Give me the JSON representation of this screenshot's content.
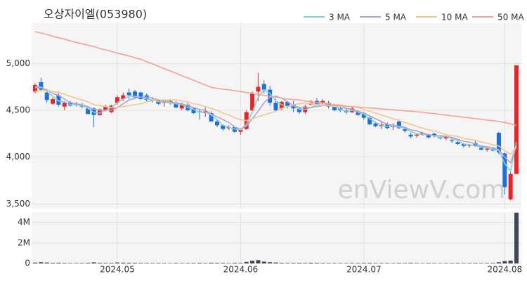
{
  "chart_data": {
    "type": "candlestick",
    "title": "오상자이엘(053980)",
    "watermark": "enViewV.com",
    "legend": "top-right",
    "grid": true,
    "up_color": "#e8262a",
    "down_color": "#1b6fde",
    "categories": [
      null,
      null,
      null,
      null,
      null,
      null,
      null,
      null,
      null,
      null,
      null,
      null,
      null,
      null,
      "2024.05",
      null,
      null,
      null,
      null,
      null,
      null,
      null,
      null,
      null,
      null,
      null,
      null,
      null,
      null,
      null,
      null,
      null,
      null,
      null,
      null,
      "2024.06",
      null,
      null,
      null,
      null,
      null,
      null,
      null,
      null,
      null,
      null,
      null,
      null,
      null,
      null,
      null,
      null,
      null,
      null,
      null,
      null,
      "2024.07",
      null,
      null,
      null,
      null,
      null,
      null,
      null,
      null,
      null,
      null,
      null,
      null,
      null,
      null,
      null,
      null,
      null,
      null,
      null,
      null,
      null,
      null,
      null,
      "2024.08",
      null,
      null
    ],
    "open": [
      4700,
      4800,
      4690,
      4570,
      4660,
      4540,
      4580,
      4570,
      4560,
      4520,
      4520,
      4450,
      4500,
      4480,
      4580,
      4620,
      4690,
      4700,
      4690,
      4660,
      4610,
      4610,
      4580,
      4600,
      4580,
      4520,
      4560,
      4520,
      4490,
      4470,
      4470,
      4380,
      4340,
      4310,
      4320,
      4270,
      4300,
      4500,
      4700,
      4780,
      4720,
      4580,
      4520,
      4590,
      4560,
      4520,
      4480,
      4560,
      4600,
      4580,
      4580,
      4540,
      4520,
      4500,
      4480,
      4480,
      4470,
      4420,
      4360,
      4330,
      4350,
      4320,
      4380,
      4300,
      4240,
      4230,
      4250,
      4240,
      4250,
      4210,
      4200,
      4180,
      4160,
      4140,
      4120,
      4150,
      4100,
      4080,
      4090,
      4260,
      4040,
      3550,
      3820
    ],
    "high": [
      4790,
      4850,
      4720,
      4640,
      4700,
      4600,
      4600,
      4590,
      4580,
      4540,
      4530,
      4520,
      4560,
      4560,
      4660,
      4690,
      4730,
      4720,
      4700,
      4680,
      4640,
      4620,
      4610,
      4620,
      4600,
      4580,
      4580,
      4530,
      4510,
      4530,
      4490,
      4410,
      4350,
      4340,
      4330,
      4300,
      4500,
      4700,
      4900,
      4820,
      4760,
      4620,
      4600,
      4600,
      4600,
      4540,
      4560,
      4610,
      4630,
      4620,
      4600,
      4560,
      4540,
      4520,
      4540,
      4500,
      4480,
      4440,
      4380,
      4380,
      4370,
      4360,
      4400,
      4320,
      4260,
      4250,
      4270,
      4250,
      4260,
      4220,
      4230,
      4200,
      4170,
      4150,
      4140,
      4180,
      4110,
      4100,
      4100,
      4270,
      4050,
      3840,
      4980
    ],
    "low": [
      4680,
      4700,
      4580,
      4560,
      4540,
      4500,
      4540,
      4540,
      4520,
      4460,
      4320,
      4440,
      4490,
      4470,
      4560,
      4600,
      4620,
      4620,
      4610,
      4590,
      4580,
      4560,
      4540,
      4560,
      4520,
      4500,
      4490,
      4460,
      4400,
      4430,
      4380,
      4320,
      4280,
      4290,
      4260,
      4240,
      4290,
      4480,
      4600,
      4680,
      4550,
      4480,
      4500,
      4520,
      4480,
      4460,
      4460,
      4550,
      4560,
      4560,
      4520,
      4490,
      4480,
      4460,
      4470,
      4440,
      4400,
      4340,
      4320,
      4300,
      4300,
      4290,
      4300,
      4260,
      4200,
      4210,
      4230,
      4200,
      4210,
      4190,
      4180,
      4150,
      4130,
      4100,
      4100,
      4110,
      4070,
      4060,
      4060,
      4030,
      3600,
      3540,
      3820
    ],
    "close": [
      4770,
      4720,
      4610,
      4620,
      4560,
      4580,
      4550,
      4560,
      4540,
      4460,
      4450,
      4510,
      4540,
      4550,
      4640,
      4660,
      4660,
      4640,
      4620,
      4610,
      4600,
      4570,
      4600,
      4580,
      4530,
      4560,
      4500,
      4470,
      4480,
      4490,
      4380,
      4340,
      4300,
      4320,
      4270,
      4290,
      4480,
      4680,
      4750,
      4720,
      4580,
      4500,
      4590,
      4540,
      4520,
      4480,
      4540,
      4580,
      4570,
      4600,
      4540,
      4500,
      4500,
      4480,
      4520,
      4450,
      4420,
      4350,
      4330,
      4350,
      4310,
      4340,
      4310,
      4280,
      4220,
      4240,
      4260,
      4210,
      4230,
      4200,
      4220,
      4170,
      4140,
      4120,
      4130,
      4120,
      4080,
      4090,
      4070,
      4050,
      3680,
      3820,
      4980
    ],
    "ylim": [
      3450,
      5430
    ],
    "yticks": [
      {
        "value": 3500,
        "label": "3,500"
      },
      {
        "value": 4000,
        "label": "4,000"
      },
      {
        "value": 4500,
        "label": "4,500"
      },
      {
        "value": 5000,
        "label": "5,000"
      }
    ],
    "moving_averages": [
      {
        "name": "3 MA",
        "color": "#7dd3d6",
        "values": [
          4750,
          4750,
          4700,
          4650,
          4600,
          4590,
          4560,
          4560,
          4550,
          4520,
          4480,
          4470,
          4500,
          4530,
          4580,
          4620,
          4650,
          4650,
          4640,
          4620,
          4610,
          4590,
          4590,
          4580,
          4570,
          4560,
          4530,
          4510,
          4480,
          4480,
          4450,
          4400,
          4340,
          4320,
          4300,
          4290,
          4350,
          4480,
          4640,
          4720,
          4680,
          4600,
          4560,
          4540,
          4550,
          4510,
          4510,
          4530,
          4560,
          4580,
          4570,
          4550,
          4510,
          4490,
          4500,
          4480,
          4460,
          4410,
          4370,
          4340,
          4330,
          4330,
          4320,
          4310,
          4270,
          4250,
          4240,
          4240,
          4230,
          4210,
          4220,
          4200,
          4180,
          4140,
          4130,
          4120,
          4110,
          4100,
          4080,
          4070,
          3930,
          3850,
          4160
        ]
      },
      {
        "name": "5 MA",
        "color": "#b89fcc",
        "values": [
          4740,
          4740,
          4720,
          4680,
          4660,
          4620,
          4580,
          4570,
          4560,
          4540,
          4510,
          4500,
          4500,
          4500,
          4530,
          4570,
          4610,
          4630,
          4640,
          4640,
          4630,
          4610,
          4600,
          4590,
          4580,
          4570,
          4550,
          4530,
          4510,
          4500,
          4460,
          4430,
          4400,
          4370,
          4320,
          4300,
          4330,
          4410,
          4490,
          4580,
          4640,
          4650,
          4630,
          4590,
          4550,
          4530,
          4530,
          4530,
          4540,
          4550,
          4570,
          4560,
          4540,
          4520,
          4510,
          4490,
          4470,
          4440,
          4410,
          4380,
          4350,
          4340,
          4330,
          4320,
          4290,
          4280,
          4260,
          4240,
          4230,
          4230,
          4220,
          4210,
          4190,
          4170,
          4160,
          4140,
          4120,
          4110,
          4100,
          4080,
          4000,
          3940,
          4120
        ]
      },
      {
        "name": "10 MA",
        "color": "#f3c68f",
        "values": [
          4700,
          4710,
          4710,
          4700,
          4690,
          4670,
          4650,
          4630,
          4610,
          4590,
          4560,
          4550,
          4540,
          4530,
          4530,
          4540,
          4550,
          4560,
          4570,
          4590,
          4600,
          4610,
          4610,
          4610,
          4610,
          4600,
          4590,
          4570,
          4560,
          4540,
          4520,
          4500,
          4470,
          4450,
          4420,
          4400,
          4390,
          4410,
          4430,
          4450,
          4470,
          4490,
          4520,
          4540,
          4560,
          4570,
          4580,
          4570,
          4560,
          4550,
          4550,
          4540,
          4540,
          4540,
          4540,
          4530,
          4510,
          4490,
          4470,
          4450,
          4430,
          4410,
          4390,
          4370,
          4350,
          4330,
          4310,
          4290,
          4280,
          4260,
          4240,
          4230,
          4220,
          4200,
          4190,
          4180,
          4160,
          4150,
          4130,
          4120,
          4070,
          4030,
          4110
        ]
      },
      {
        "name": "50 MA",
        "color": "#f5a290",
        "values": [
          5340,
          5325,
          5310,
          5290,
          5275,
          5260,
          5240,
          5225,
          5210,
          5195,
          5180,
          5160,
          5145,
          5130,
          5110,
          5095,
          5080,
          5060,
          5045,
          5020,
          4995,
          4970,
          4945,
          4920,
          4895,
          4870,
          4845,
          4820,
          4795,
          4770,
          4745,
          4735,
          4725,
          4720,
          4710,
          4700,
          4690,
          4680,
          4670,
          4660,
          4650,
          4640,
          4630,
          4620,
          4615,
          4610,
          4600,
          4595,
          4585,
          4580,
          4570,
          4560,
          4555,
          4545,
          4540,
          4535,
          4530,
          4525,
          4520,
          4515,
          4510,
          4505,
          4500,
          4495,
          4490,
          4485,
          4480,
          4470,
          4465,
          4455,
          4450,
          4440,
          4435,
          4425,
          4420,
          4410,
          4405,
          4395,
          4390,
          4380,
          4370,
          4355,
          4340
        ]
      }
    ],
    "volume": {
      "color": "#3f4658",
      "values": [
        80000,
        120000,
        90000,
        60000,
        70000,
        50000,
        40000,
        45000,
        50000,
        60000,
        110000,
        60000,
        50000,
        55000,
        90000,
        80000,
        70000,
        60000,
        50000,
        45000,
        40000,
        45000,
        40000,
        35000,
        50000,
        40000,
        45000,
        50000,
        60000,
        45000,
        70000,
        60000,
        55000,
        40000,
        60000,
        50000,
        150000,
        260000,
        320000,
        180000,
        120000,
        90000,
        60000,
        50000,
        55000,
        60000,
        50000,
        70000,
        60000,
        50000,
        45000,
        40000,
        45000,
        40000,
        50000,
        45000,
        55000,
        60000,
        45000,
        40000,
        45000,
        40000,
        50000,
        45000,
        60000,
        40000,
        35000,
        45000,
        40000,
        35000,
        40000,
        45000,
        50000,
        40000,
        45000,
        50000,
        40000,
        45000,
        50000,
        120000,
        230000,
        280000,
        4950000
      ],
      "ylim": [
        0,
        5000000
      ],
      "yticks": [
        0,
        {
          "value": 2000000,
          "label": "2M"
        },
        {
          "value": 4000000,
          "label": "4M"
        }
      ]
    }
  }
}
